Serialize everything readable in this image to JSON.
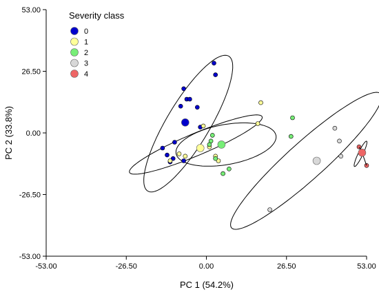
{
  "chart_data": {
    "type": "scatter",
    "xlabel": "PC 1 (54.2%)",
    "ylabel": "PC 2 (33.8%)",
    "xlim": [
      -53,
      53
    ],
    "ylim": [
      -53,
      53
    ],
    "xticks": [
      -53,
      -26.5,
      0,
      26.5,
      53
    ],
    "yticks": [
      -53,
      -26.5,
      0,
      26.5,
      53
    ],
    "xtick_labels": [
      "-53.00",
      "-26.50",
      "0.00",
      "26.50",
      "53.00"
    ],
    "ytick_labels": [
      "-53.00",
      "-26.50",
      "0.00",
      "26.50",
      "53.00"
    ],
    "grid": false,
    "legend": {
      "title": "Severity class",
      "position": "top-left",
      "entries": [
        {
          "label": "0",
          "color": "#0000cc"
        },
        {
          "label": "1",
          "color": "#ffff99"
        },
        {
          "label": "2",
          "color": "#77ee77"
        },
        {
          "label": "3",
          "color": "#d8d8d8"
        },
        {
          "label": "4",
          "color": "#ee6666"
        }
      ]
    },
    "series": [
      {
        "name": "0",
        "color": "#0000cc",
        "points": [
          [
            2.5,
            30.0
          ],
          [
            3.0,
            25.0
          ],
          [
            -7.5,
            19.0
          ],
          [
            -6.5,
            14.5
          ],
          [
            -5.5,
            14.5
          ],
          [
            -8.5,
            11.5
          ],
          [
            -3.0,
            11.0
          ],
          [
            -2.0,
            2.5
          ],
          [
            -10.5,
            -4.0
          ],
          [
            -14.5,
            -6.5
          ],
          [
            -13.0,
            -9.5
          ],
          [
            -11.0,
            -11.0
          ],
          [
            -12.0,
            -12.5
          ],
          [
            -7.5,
            -12.0
          ]
        ],
        "centroid": [
          -7.0,
          4.5
        ]
      },
      {
        "name": "1",
        "color": "#ffff99",
        "points": [
          [
            18.0,
            13.0
          ],
          [
            17.0,
            4.0
          ],
          [
            -1.0,
            3.0
          ],
          [
            -9.0,
            -9.0
          ],
          [
            -7.0,
            -10.0
          ],
          [
            -12.0,
            -12.0
          ],
          [
            1.0,
            -6.0
          ],
          [
            3.0,
            -10.0
          ],
          [
            4.0,
            -12.0
          ]
        ],
        "centroid": [
          -2.0,
          -6.5
        ]
      },
      {
        "name": "2",
        "color": "#77ee77",
        "points": [
          [
            28.5,
            6.5
          ],
          [
            28.0,
            -1.5
          ],
          [
            2.0,
            -1.0
          ],
          [
            1.5,
            -3.5
          ],
          [
            1.0,
            -5.0
          ],
          [
            3.0,
            -11.0
          ],
          [
            7.5,
            -15.5
          ],
          [
            5.5,
            -17.5
          ]
        ],
        "centroid": [
          5.0,
          -5.0
        ]
      },
      {
        "name": "3",
        "color": "#d8d8d8",
        "points": [
          [
            42.5,
            2.0
          ],
          [
            44.0,
            -3.5
          ],
          [
            44.5,
            -10.0
          ],
          [
            21.0,
            -33.0
          ]
        ],
        "centroid": [
          36.5,
          -12.0
        ]
      },
      {
        "name": "4",
        "color": "#ee6666",
        "points": [
          [
            50.5,
            -6.0
          ],
          [
            53.0,
            -14.0
          ]
        ],
        "centroid": [
          51.5,
          -8.5
        ]
      }
    ],
    "ellipses": [
      {
        "series": "0",
        "cx": -6.0,
        "cy": 4.0,
        "rx": 32.0,
        "ry": 7.5,
        "angle": 66
      },
      {
        "series": "1",
        "cx": -3.5,
        "cy": -5.0,
        "rx": 25.0,
        "ry": 4.5,
        "angle": 29
      },
      {
        "series": "2",
        "cx": 6.5,
        "cy": -5.0,
        "rx": 17.0,
        "ry": 8.5,
        "angle": 15
      },
      {
        "series": "3",
        "cx": 33.0,
        "cy": -12.0,
        "rx": 38.0,
        "ry": 7.0,
        "angle": 50
      },
      {
        "series": "4",
        "cx": 51.0,
        "cy": -9.0,
        "rx": 5.8,
        "ry": 0.8,
        "angle": 70
      }
    ]
  }
}
